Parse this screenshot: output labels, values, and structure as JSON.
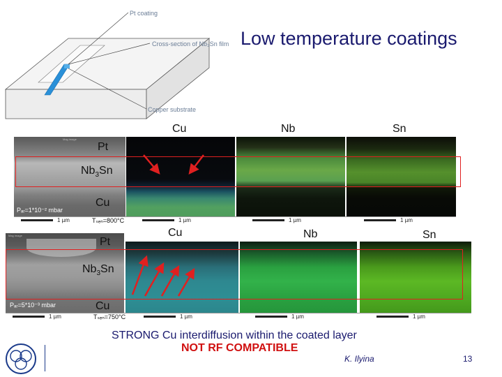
{
  "title": "Low temperature coatings",
  "diagram": {
    "pt_label": "Pt coating",
    "cross_section_label": "Cross-section of Nb₃Sn film",
    "substrate_label": "Copper substrate"
  },
  "row1": {
    "headers": {
      "cu": "Cu",
      "nb": "Nb",
      "sn": "Sn"
    },
    "layers": {
      "pt": "Pt",
      "nb": "Nb",
      "three": "3",
      "sn": "Sn",
      "cu": "Cu"
    },
    "pressure": "Pₐᵣ=1*10⁻² mbar",
    "temperature": "Tₛₑₙ=800°C",
    "scale": "1 µm"
  },
  "row2": {
    "headers": {
      "cu": "Cu",
      "nb": "Nb",
      "sn": "Sn"
    },
    "layers": {
      "pt": "Pt",
      "nb": "Nb",
      "three": "3",
      "sn": "Sn",
      "cu": "Cu"
    },
    "pressure": "Pₐᵣ=5*10⁻³ mbar",
    "temperature": "Tₛₑₙ=750°C",
    "scale": "1 µm"
  },
  "footer": {
    "line1": "STRONG Cu interdiffusion within the coated layer",
    "line2": "NOT RF COMPATIBLE",
    "author": "K. Ilyina",
    "page": "13"
  },
  "colors": {
    "title": "#1a1a6e",
    "highlight": "#e02020"
  }
}
